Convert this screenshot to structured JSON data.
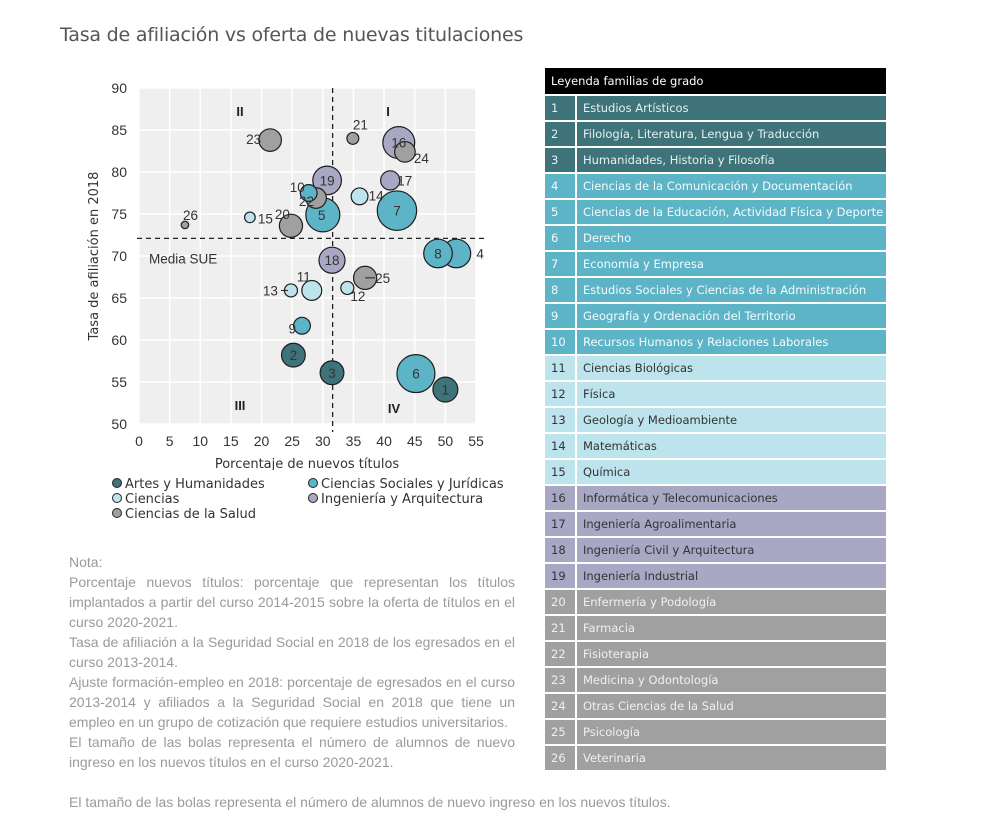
{
  "title": "Tasa de afiliación vs oferta de nuevas titulaciones",
  "chart_data": {
    "type": "scatter",
    "subtype": "bubble",
    "xlabel": "Porcentaje de nuevos títulos",
    "ylabel": "Tasa de afiliación en 2018",
    "xlim": [
      0,
      55
    ],
    "ylim": [
      50,
      90
    ],
    "xticks": [
      0,
      5,
      10,
      15,
      20,
      25,
      30,
      35,
      40,
      45,
      50,
      55
    ],
    "yticks": [
      50,
      55,
      60,
      65,
      70,
      75,
      80,
      85,
      90
    ],
    "grid": true,
    "reference_lines": {
      "vertical_x": 31.6,
      "horizontal_y": 72.1,
      "horizontal_label": "Media SUE"
    },
    "quadrants": [
      {
        "label": "I",
        "position": "top-right"
      },
      {
        "label": "II",
        "position": "top-left"
      },
      {
        "label": "III",
        "position": "bottom-left"
      },
      {
        "label": "IV",
        "position": "bottom-right"
      }
    ],
    "branches": [
      {
        "name": "Artes y Humanidades",
        "color": "#3d7379"
      },
      {
        "name": "Ciencias Sociales y Jurídicas",
        "color": "#5db4c6"
      },
      {
        "name": "Ciencias",
        "color": "#bde3ec"
      },
      {
        "name": "Ingeniería y Arquitectura",
        "color": "#a9a8c4"
      },
      {
        "name": "Ciencias de la Salud",
        "color": "#a0a0a0"
      }
    ],
    "legend_position": "bottom",
    "size_meaning": "Número de alumnos de nuevo ingreso en los nuevos títulos (relativo)",
    "points": [
      {
        "id": 1,
        "x": 50.0,
        "y": 54.1,
        "branch": 0,
        "size": 2.2
      },
      {
        "id": 2,
        "x": 25.2,
        "y": 58.2,
        "branch": 0,
        "size": 2.0
      },
      {
        "id": 3,
        "x": 31.5,
        "y": 56.1,
        "branch": 0,
        "size": 2.0
      },
      {
        "id": 4,
        "x": 51.8,
        "y": 70.3,
        "branch": 1,
        "size": 2.9
      },
      {
        "id": 5,
        "x": 30.0,
        "y": 74.9,
        "branch": 1,
        "size": 4.1
      },
      {
        "id": 6,
        "x": 45.2,
        "y": 56.0,
        "branch": 1,
        "size": 5.1
      },
      {
        "id": 7,
        "x": 42.1,
        "y": 75.4,
        "branch": 1,
        "size": 5.5
      },
      {
        "id": 8,
        "x": 48.8,
        "y": 70.3,
        "branch": 1,
        "size": 2.9
      },
      {
        "id": 9,
        "x": 26.6,
        "y": 61.7,
        "branch": 1,
        "size": 1.0
      },
      {
        "id": 10,
        "x": 27.7,
        "y": 77.5,
        "branch": 1,
        "size": 1.0
      },
      {
        "id": 11,
        "x": 28.2,
        "y": 65.9,
        "branch": 2,
        "size": 1.4
      },
      {
        "id": 12,
        "x": 34.0,
        "y": 66.2,
        "branch": 2,
        "size": 0.6
      },
      {
        "id": 13,
        "x": 24.8,
        "y": 65.9,
        "branch": 2,
        "size": 0.6
      },
      {
        "id": 14,
        "x": 36.0,
        "y": 77.1,
        "branch": 2,
        "size": 1.0
      },
      {
        "id": 15,
        "x": 18.1,
        "y": 74.6,
        "branch": 2,
        "size": 0.4
      },
      {
        "id": 16,
        "x": 42.4,
        "y": 83.5,
        "branch": 3,
        "size": 3.6
      },
      {
        "id": 17,
        "x": 41.0,
        "y": 79.0,
        "branch": 3,
        "size": 1.3
      },
      {
        "id": 18,
        "x": 31.5,
        "y": 69.5,
        "branch": 3,
        "size": 2.4
      },
      {
        "id": 19,
        "x": 30.7,
        "y": 79.0,
        "branch": 3,
        "size": 2.9
      },
      {
        "id": 20,
        "x": 24.8,
        "y": 73.6,
        "branch": 4,
        "size": 1.9
      },
      {
        "id": 21,
        "x": 34.9,
        "y": 84.0,
        "branch": 4,
        "size": 0.5
      },
      {
        "id": 22,
        "x": 28.9,
        "y": 76.9,
        "branch": 4,
        "size": 1.5
      },
      {
        "id": 23,
        "x": 21.4,
        "y": 83.8,
        "branch": 4,
        "size": 1.8
      },
      {
        "id": 24,
        "x": 43.4,
        "y": 82.4,
        "branch": 4,
        "size": 1.5
      },
      {
        "id": 25,
        "x": 36.9,
        "y": 67.4,
        "branch": 4,
        "size": 1.9
      },
      {
        "id": 26,
        "x": 7.5,
        "y": 73.7,
        "branch": 4,
        "size": 0.2
      }
    ]
  },
  "legend_table": {
    "header": "Leyenda familias de grado",
    "rows": [
      {
        "num": "1",
        "label": "Estudios Artísticos",
        "branch": 0
      },
      {
        "num": "2",
        "label": "Filología, Literatura, Lengua y Traducción",
        "branch": 0
      },
      {
        "num": "3",
        "label": "Humanidades, Historia y Filosofía",
        "branch": 0
      },
      {
        "num": "4",
        "label": "Ciencias de la Comunicación y Documentación",
        "branch": 1
      },
      {
        "num": "5",
        "label": "Ciencias de la Educación, Actividad Física y Deporte",
        "branch": 1
      },
      {
        "num": "6",
        "label": "Derecho",
        "branch": 1
      },
      {
        "num": "7",
        "label": "Economía y Empresa",
        "branch": 1
      },
      {
        "num": "8",
        "label": "Estudios Sociales y Ciencias de la Administración",
        "branch": 1
      },
      {
        "num": "9",
        "label": "Geografía y Ordenación del Territorio",
        "branch": 1
      },
      {
        "num": "10",
        "label": "Recursos Humanos y Relaciones Laborales",
        "branch": 1
      },
      {
        "num": "11",
        "label": "Ciencias Biológicas",
        "branch": 2
      },
      {
        "num": "12",
        "label": "Física",
        "branch": 2
      },
      {
        "num": "13",
        "label": "Geología y Medioambiente",
        "branch": 2
      },
      {
        "num": "14",
        "label": "Matemáticas",
        "branch": 2
      },
      {
        "num": "15",
        "label": "Química",
        "branch": 2
      },
      {
        "num": "16",
        "label": "Informática y Telecomunicaciones",
        "branch": 3
      },
      {
        "num": "17",
        "label": "Ingeniería Agroalimentaria",
        "branch": 3
      },
      {
        "num": "18",
        "label": "Ingeniería Civil y Arquitectura",
        "branch": 3
      },
      {
        "num": "19",
        "label": "Ingeniería Industrial",
        "branch": 3
      },
      {
        "num": "20",
        "label": "Enfermería y Podología",
        "branch": 4
      },
      {
        "num": "21",
        "label": "Farmacia",
        "branch": 4
      },
      {
        "num": "22",
        "label": "Fisioterapia",
        "branch": 4
      },
      {
        "num": "23",
        "label": "Medicina y Odontología",
        "branch": 4
      },
      {
        "num": "24",
        "label": "Otras Ciencias de la Salud",
        "branch": 4
      },
      {
        "num": "25",
        "label": "Psicología",
        "branch": 4
      },
      {
        "num": "26",
        "label": "Veterinaria",
        "branch": 4
      }
    ],
    "row_colors": {
      "0": {
        "bg": "#3d7379",
        "fg": "#e8f0f0"
      },
      "1": {
        "bg": "#5db4c6",
        "fg": "#f4fbfd"
      },
      "2": {
        "bg": "#bde3ec",
        "fg": "#333333"
      },
      "3": {
        "bg": "#a9a8c4",
        "fg": "#333333"
      },
      "4": {
        "bg": "#a0a0a0",
        "fg": "#f0f0f0"
      }
    }
  },
  "notes": {
    "heading": "Nota:",
    "paragraphs": [
      "Porcentaje nuevos títulos: porcentaje que representan los títulos implantados a partir del curso 2014-2015 sobre la oferta de títulos en el curso 2020-2021.",
      "Tasa de afiliación a la Seguridad Social en 2018 de los egresados en el curso 2013-2014.",
      "Ajuste formación-empleo en 2018: porcentaje de egresados en el curso 2013-2014 y afiliados a la Seguridad Social en 2018 que tiene un empleo en un grupo de cotización que requiere estudios universitarios.",
      "El tamaño de las bolas representa el número de alumnos de nuevo ingreso en los nuevos títulos en el curso 2020-2021."
    ],
    "tail": "El tamaño de las bolas representa el número de alumnos de nuevo ingreso en los nuevos títulos."
  }
}
